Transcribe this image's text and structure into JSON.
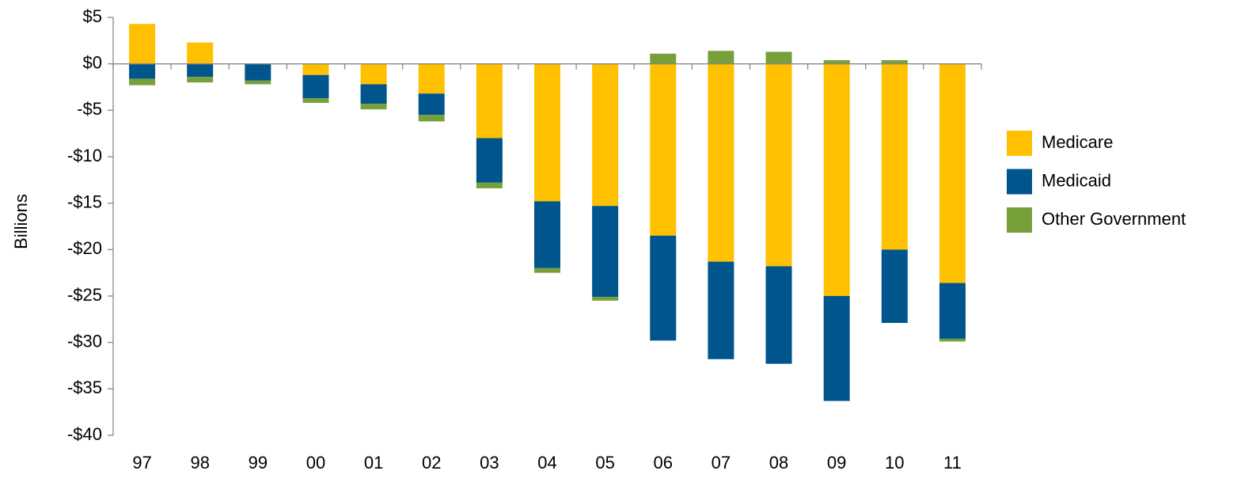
{
  "chart_data": {
    "type": "stacked_bar",
    "y_label": "Billions",
    "categories": [
      "97",
      "98",
      "99",
      "00",
      "01",
      "02",
      "03",
      "04",
      "05",
      "06",
      "07",
      "08",
      "09",
      "10",
      "11"
    ],
    "series": [
      {
        "name": "Medicare",
        "color": "#ffc000",
        "values": [
          4.3,
          2.3,
          0,
          -1.2,
          -2.2,
          -3.2,
          -8.0,
          -14.8,
          -15.3,
          -18.5,
          -21.3,
          -21.8,
          -25.0,
          -20.0,
          -23.6
        ]
      },
      {
        "name": "Medicaid",
        "color": "#00568c",
        "values": [
          -1.6,
          -1.4,
          -1.8,
          -2.5,
          -2.1,
          -2.3,
          -4.8,
          -7.2,
          -9.8,
          -11.3,
          -10.5,
          -10.5,
          -11.3,
          -7.9,
          -6.0
        ]
      },
      {
        "name": "Other Government",
        "color": "#77a03a",
        "values": [
          -0.7,
          -0.6,
          -0.4,
          -0.5,
          -0.6,
          -0.7,
          -0.6,
          -0.5,
          -0.4,
          1.1,
          1.4,
          1.3,
          0.4,
          0.4,
          -0.3
        ]
      }
    ],
    "ylim": [
      -40,
      5
    ],
    "yticks": [
      {
        "value": 5,
        "label": "$5"
      },
      {
        "value": 0,
        "label": "$0"
      },
      {
        "value": -5,
        "label": "-$5"
      },
      {
        "value": -10,
        "label": "-$10"
      },
      {
        "value": -15,
        "label": "-$15"
      },
      {
        "value": -20,
        "label": "-$20"
      },
      {
        "value": -25,
        "label": "-$25"
      },
      {
        "value": -30,
        "label": "-$30"
      },
      {
        "value": -35,
        "label": "-$35"
      },
      {
        "value": -40,
        "label": "-$40"
      }
    ],
    "legend": "right"
  }
}
